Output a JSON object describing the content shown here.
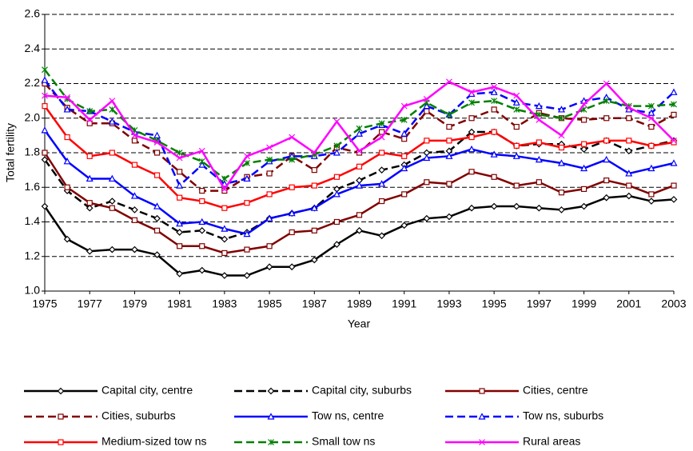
{
  "chart_data": {
    "type": "line",
    "x_label": "Year",
    "y_label": "Total fertility",
    "x": [
      1975,
      1976,
      1977,
      1978,
      1979,
      1980,
      1981,
      1982,
      1983,
      1984,
      1985,
      1986,
      1987,
      1988,
      1989,
      1990,
      1991,
      1992,
      1993,
      1994,
      1995,
      1996,
      1997,
      1998,
      1999,
      2000,
      2001,
      2002,
      2003
    ],
    "xlim": [
      1975,
      2003
    ],
    "xticks": [
      1975,
      1977,
      1979,
      1981,
      1983,
      1985,
      1987,
      1989,
      1991,
      1993,
      1995,
      1997,
      1999,
      2001,
      2003
    ],
    "ylim": [
      1.0,
      2.6
    ],
    "yticks": [
      {
        "value": 1,
        "label": "1.0"
      },
      1.2,
      1.4,
      1.6,
      1.8,
      {
        "value": 2,
        "label": "2.0"
      },
      2.2,
      2.4,
      2.6
    ],
    "grid": true,
    "legend": "bottom",
    "series": [
      {
        "name": "Capital city, centre",
        "color": "#000000",
        "dashed": false,
        "marker": "diamond",
        "values": [
          1.49,
          1.3,
          1.23,
          1.24,
          1.24,
          1.21,
          1.1,
          1.12,
          1.09,
          1.09,
          1.14,
          1.14,
          1.18,
          1.27,
          1.35,
          1.32,
          1.38,
          1.42,
          1.43,
          1.48,
          1.49,
          1.49,
          1.48,
          1.47,
          1.49,
          1.54,
          1.55,
          1.52,
          1.53
        ]
      },
      {
        "name": "Capital city, suburbs",
        "color": "#000000",
        "dashed": true,
        "marker": "diamond",
        "values": [
          1.76,
          1.58,
          1.48,
          1.52,
          1.47,
          1.42,
          1.34,
          1.35,
          1.3,
          1.34,
          1.42,
          1.45,
          1.48,
          1.59,
          1.64,
          1.7,
          1.73,
          1.8,
          1.81,
          1.92,
          1.92,
          1.84,
          1.85,
          1.85,
          1.82,
          1.87,
          1.81,
          1.84,
          1.87
        ]
      },
      {
        "name": "Cities, centre",
        "color": "#800000",
        "dashed": false,
        "marker": "square",
        "values": [
          1.8,
          1.6,
          1.51,
          1.48,
          1.41,
          1.35,
          1.26,
          1.26,
          1.22,
          1.24,
          1.26,
          1.34,
          1.35,
          1.4,
          1.44,
          1.52,
          1.56,
          1.63,
          1.62,
          1.69,
          1.66,
          1.61,
          1.63,
          1.57,
          1.59,
          1.64,
          1.61,
          1.56,
          1.61
        ]
      },
      {
        "name": "Cities, suburbs",
        "color": "#800000",
        "dashed": true,
        "marker": "square",
        "values": [
          2.2,
          2.06,
          1.97,
          1.97,
          1.87,
          1.8,
          1.69,
          1.58,
          1.58,
          1.66,
          1.68,
          1.78,
          1.7,
          1.83,
          1.8,
          1.92,
          1.88,
          2.04,
          1.95,
          2.0,
          2.05,
          1.95,
          2.03,
          2.0,
          1.99,
          2.0,
          2.0,
          1.95,
          2.02
        ]
      },
      {
        "name": "Tow ns, centre",
        "color": "#0000ff",
        "dashed": false,
        "marker": "triangle",
        "values": [
          1.93,
          1.75,
          1.65,
          1.65,
          1.55,
          1.49,
          1.39,
          1.4,
          1.36,
          1.33,
          1.42,
          1.45,
          1.48,
          1.56,
          1.61,
          1.62,
          1.71,
          1.77,
          1.78,
          1.82,
          1.79,
          1.78,
          1.76,
          1.74,
          1.71,
          1.76,
          1.68,
          1.71,
          1.74
        ]
      },
      {
        "name": "Tow ns, suburbs",
        "color": "#0000ff",
        "dashed": true,
        "marker": "triangle",
        "values": [
          2.22,
          2.05,
          2.04,
          1.98,
          1.92,
          1.9,
          1.61,
          1.73,
          1.62,
          1.65,
          1.75,
          1.78,
          1.78,
          1.8,
          1.91,
          1.96,
          1.91,
          2.07,
          2.02,
          2.14,
          2.15,
          2.09,
          2.07,
          2.05,
          2.1,
          2.12,
          2.05,
          2.03,
          2.15
        ]
      },
      {
        "name": "Medium-sized tow ns",
        "color": "#ff0000",
        "dashed": false,
        "marker": "square",
        "values": [
          2.07,
          1.89,
          1.78,
          1.8,
          1.73,
          1.67,
          1.54,
          1.52,
          1.48,
          1.51,
          1.56,
          1.6,
          1.61,
          1.66,
          1.72,
          1.8,
          1.78,
          1.87,
          1.87,
          1.89,
          1.92,
          1.84,
          1.86,
          1.83,
          1.85,
          1.87,
          1.87,
          1.84,
          1.86
        ]
      },
      {
        "name": "Small tow ns",
        "color": "#008000",
        "dashed": true,
        "marker": "star",
        "values": [
          2.28,
          2.11,
          2.04,
          2.05,
          1.93,
          1.87,
          1.8,
          1.75,
          1.65,
          1.74,
          1.76,
          1.76,
          1.79,
          1.84,
          1.94,
          1.97,
          1.99,
          2.09,
          2.02,
          2.09,
          2.1,
          2.05,
          2.02,
          2.0,
          2.05,
          2.1,
          2.07,
          2.07,
          2.08
        ]
      },
      {
        "name": "Rural areas",
        "color": "#ff00ff",
        "dashed": false,
        "marker": "x",
        "values": [
          2.13,
          2.12,
          1.99,
          2.1,
          1.9,
          1.86,
          1.77,
          1.81,
          1.59,
          1.78,
          1.83,
          1.89,
          1.8,
          1.98,
          1.81,
          1.89,
          2.07,
          2.11,
          2.21,
          2.15,
          2.18,
          2.13,
          1.99,
          1.9,
          2.08,
          2.2,
          2.06,
          2.0,
          1.87
        ]
      }
    ]
  }
}
